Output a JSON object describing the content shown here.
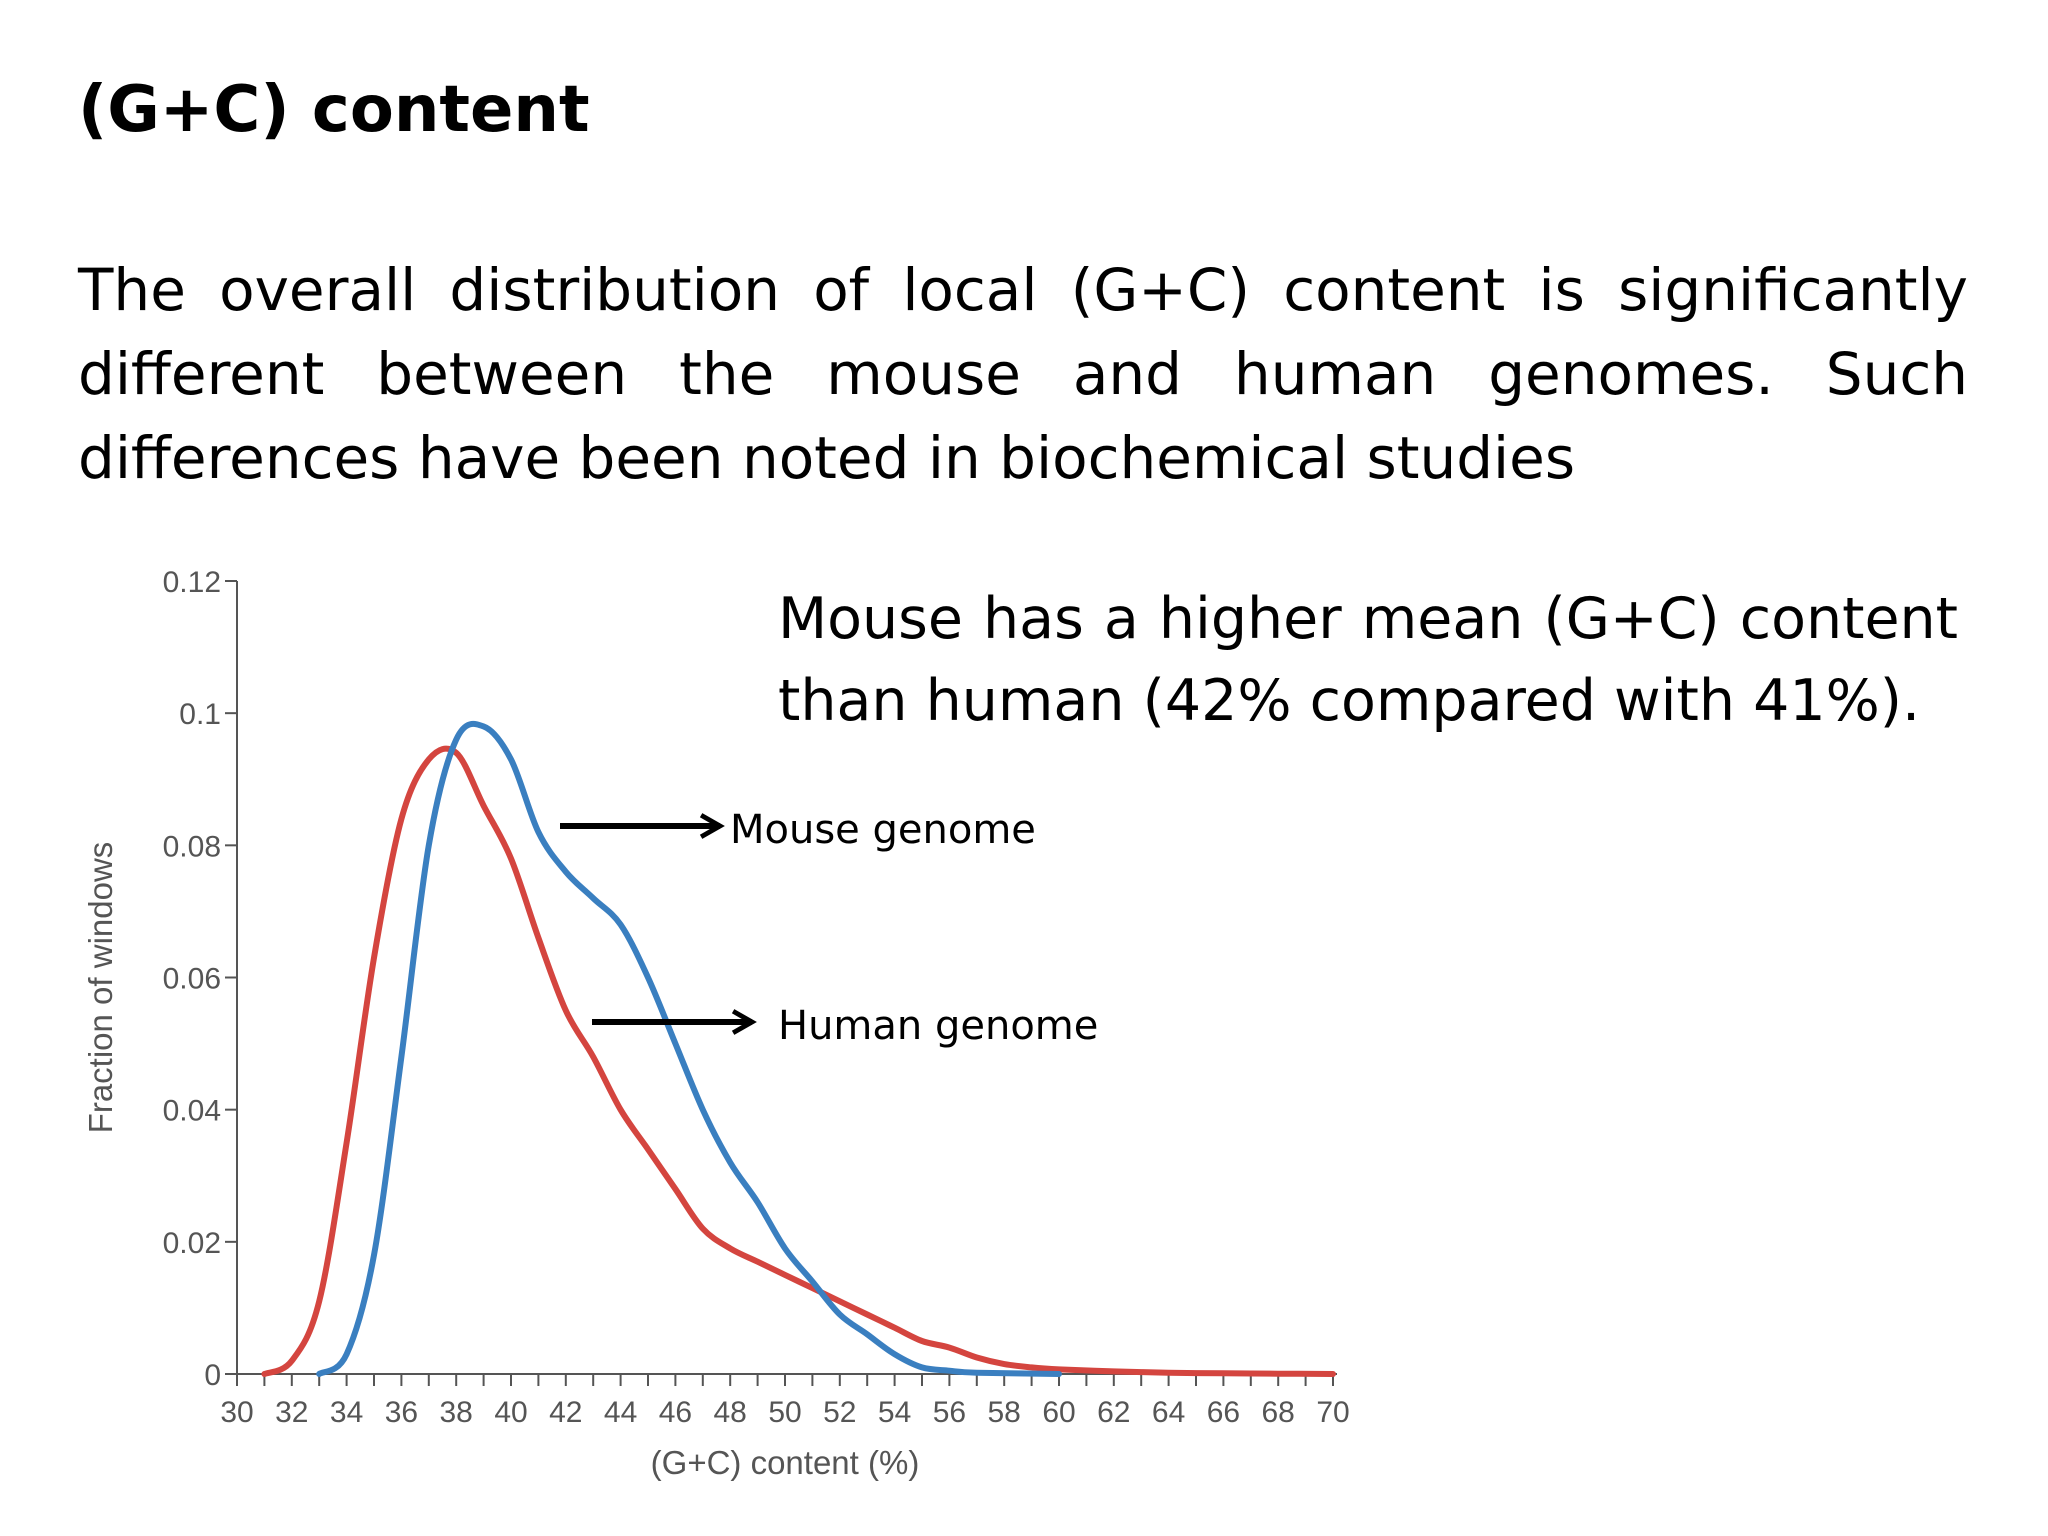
{
  "slide": {
    "title": "(G+C) content",
    "body": "The overall distribution of local (G+C) content is significantly different between the mouse and human genomes. Such differences have been noted in biochemical studies",
    "callout": "Mouse has a higher mean (G+C) content than human (42% compared with 41%)."
  },
  "colors": {
    "mouse": "#3a7fc0",
    "human": "#d4453f",
    "axis": "#555555",
    "arrow": "#000000"
  },
  "chart_data": {
    "type": "line",
    "xlabel": "(G+C) content (%)",
    "ylabel": "Fraction of windows",
    "xlim": [
      30,
      70
    ],
    "ylim": [
      0,
      0.12
    ],
    "xticks": [
      30,
      32,
      34,
      36,
      38,
      40,
      42,
      44,
      46,
      48,
      50,
      52,
      54,
      56,
      58,
      60,
      62,
      64,
      66,
      68,
      70
    ],
    "yticks": [
      {
        "value": 0,
        "label": "0"
      },
      {
        "value": 0.02,
        "label": "0.02"
      },
      {
        "value": 0.04,
        "label": "0.04"
      },
      {
        "value": 0.06,
        "label": "0.06"
      },
      {
        "value": 0.08,
        "label": "0.08"
      },
      {
        "value": 0.1,
        "label": "0.1"
      },
      {
        "value": 0.12,
        "label": "0.12"
      }
    ],
    "series": [
      {
        "name": "Mouse genome",
        "color": "#3a7fc0",
        "x": [
          33,
          34,
          35,
          36,
          37,
          38,
          39,
          40,
          41,
          42,
          43,
          44,
          45,
          46,
          47,
          48,
          49,
          50,
          51,
          52,
          53,
          54,
          55,
          56,
          57,
          60
        ],
        "y": [
          0,
          0.003,
          0.018,
          0.048,
          0.08,
          0.096,
          0.098,
          0.093,
          0.082,
          0.076,
          0.072,
          0.068,
          0.06,
          0.05,
          0.04,
          0.032,
          0.026,
          0.019,
          0.014,
          0.009,
          0.006,
          0.003,
          0.001,
          0.0005,
          0.0002,
          0
        ]
      },
      {
        "name": "Human genome",
        "color": "#d4453f",
        "x": [
          31,
          32,
          33,
          34,
          35,
          36,
          37,
          38,
          39,
          40,
          41,
          42,
          43,
          44,
          45,
          46,
          47,
          48,
          49,
          50,
          51,
          52,
          53,
          54,
          55,
          56,
          57,
          58,
          59,
          60,
          62,
          64,
          66,
          68,
          70
        ],
        "y": [
          0,
          0.002,
          0.011,
          0.035,
          0.063,
          0.084,
          0.093,
          0.094,
          0.086,
          0.078,
          0.066,
          0.055,
          0.048,
          0.04,
          0.034,
          0.028,
          0.022,
          0.019,
          0.017,
          0.015,
          0.013,
          0.011,
          0.009,
          0.007,
          0.005,
          0.004,
          0.0025,
          0.0015,
          0.001,
          0.0007,
          0.0004,
          0.0002,
          0.0001,
          5e-05,
          0
        ]
      }
    ]
  }
}
